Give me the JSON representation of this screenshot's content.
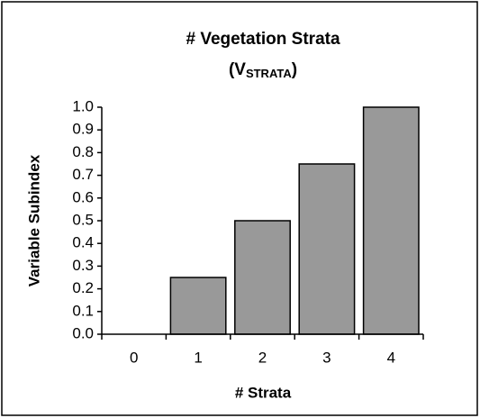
{
  "chart_data": {
    "type": "bar",
    "title": "# Vegetation Strata",
    "subtitle": [
      "(V",
      "STRATA",
      ")"
    ],
    "x_label": "# Strata",
    "y_label": "Variable Subindex",
    "categories": [
      "0",
      "1",
      "2",
      "3",
      "4"
    ],
    "values": [
      0,
      0.25,
      0.5,
      0.75,
      1.0
    ],
    "color": "#999999",
    "ylim": [
      0,
      1.0
    ],
    "yticks": [
      {
        "value": 0,
        "label": "0.0"
      },
      0.1,
      0.2,
      0.3,
      0.4,
      0.5,
      0.6,
      0.7,
      0.8,
      0.9,
      {
        "value": 1.0,
        "label": "1.0"
      }
    ],
    "grid": false
  }
}
